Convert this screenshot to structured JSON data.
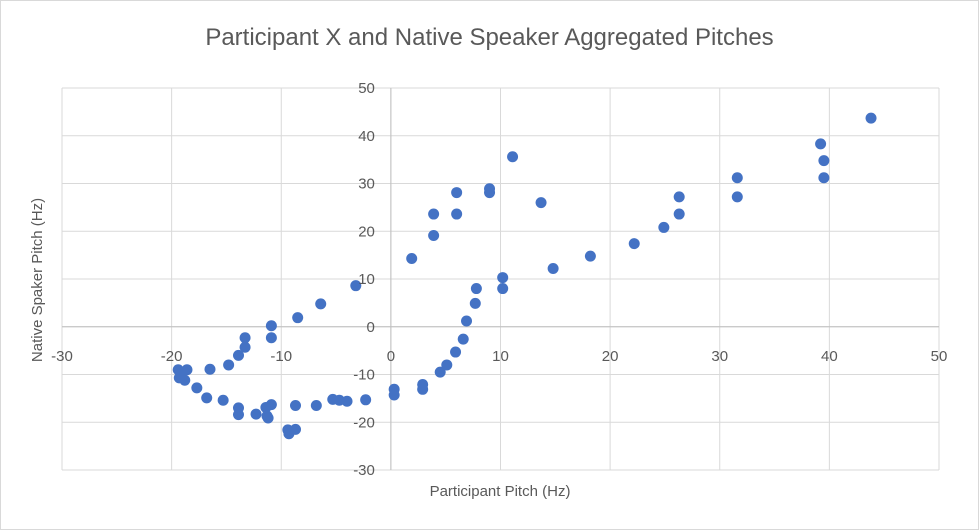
{
  "chart_data": {
    "type": "scatter",
    "title": "Participant X and Native Speaker  Aggregated Pitches",
    "xlabel": "Participant Pitch (Hz)",
    "ylabel": "Native Spaker Pitch (Hz)",
    "xlim": [
      -30,
      50
    ],
    "ylim": [
      -30,
      50
    ],
    "xticks": [
      -30,
      -20,
      -10,
      0,
      10,
      20,
      30,
      40,
      50
    ],
    "yticks": [
      -30,
      -20,
      -10,
      0,
      10,
      20,
      30,
      40,
      50
    ],
    "grid": true,
    "marker_color": "#4472c4",
    "points": [
      [
        -19.4,
        -9.0
      ],
      [
        -19.3,
        -10.7
      ],
      [
        -19.1,
        -9.8
      ],
      [
        -18.8,
        -11.2
      ],
      [
        -18.6,
        -9.0
      ],
      [
        -17.7,
        -12.8
      ],
      [
        -16.8,
        -14.9
      ],
      [
        -15.3,
        -15.4
      ],
      [
        -14.8,
        -8.0
      ],
      [
        -16.5,
        -8.9
      ],
      [
        -13.9,
        -17.0
      ],
      [
        -13.9,
        -18.4
      ],
      [
        -13.9,
        -6.0
      ],
      [
        -13.3,
        -4.3
      ],
      [
        -13.3,
        -2.3
      ],
      [
        -12.3,
        -18.3
      ],
      [
        -11.4,
        -16.9
      ],
      [
        -11.3,
        -18.7
      ],
      [
        -11.2,
        -19.1
      ],
      [
        -10.9,
        -16.3
      ],
      [
        -10.9,
        -2.3
      ],
      [
        -10.9,
        0.2
      ],
      [
        -9.4,
        -21.6
      ],
      [
        -9.3,
        -22.4
      ],
      [
        -8.7,
        -21.5
      ],
      [
        -8.7,
        -16.5
      ],
      [
        -8.5,
        1.9
      ],
      [
        -6.8,
        -16.5
      ],
      [
        -6.4,
        4.8
      ],
      [
        -5.3,
        -15.2
      ],
      [
        -4.7,
        -15.4
      ],
      [
        -4.0,
        -15.6
      ],
      [
        -3.2,
        8.6
      ],
      [
        -2.3,
        -15.3
      ],
      [
        0.3,
        -13.1
      ],
      [
        0.3,
        -14.3
      ],
      [
        1.9,
        14.3
      ],
      [
        2.9,
        -13.1
      ],
      [
        2.9,
        -12.1
      ],
      [
        3.9,
        23.6
      ],
      [
        3.9,
        19.1
      ],
      [
        4.5,
        -9.5
      ],
      [
        5.1,
        -8.0
      ],
      [
        5.9,
        -5.3
      ],
      [
        6.0,
        28.1
      ],
      [
        6.0,
        23.6
      ],
      [
        6.6,
        -2.6
      ],
      [
        6.9,
        1.2
      ],
      [
        7.7,
        4.9
      ],
      [
        7.8,
        8.0
      ],
      [
        9.0,
        28.9
      ],
      [
        9.0,
        28.1
      ],
      [
        10.2,
        10.3
      ],
      [
        10.2,
        8.0
      ],
      [
        11.1,
        35.6
      ],
      [
        13.7,
        26.0
      ],
      [
        14.8,
        12.2
      ],
      [
        18.2,
        14.8
      ],
      [
        22.2,
        17.4
      ],
      [
        24.9,
        20.8
      ],
      [
        26.3,
        27.2
      ],
      [
        26.3,
        23.6
      ],
      [
        31.6,
        31.2
      ],
      [
        31.6,
        27.2
      ],
      [
        39.2,
        38.3
      ],
      [
        39.5,
        34.8
      ],
      [
        39.5,
        31.2
      ],
      [
        43.8,
        43.7
      ]
    ]
  }
}
